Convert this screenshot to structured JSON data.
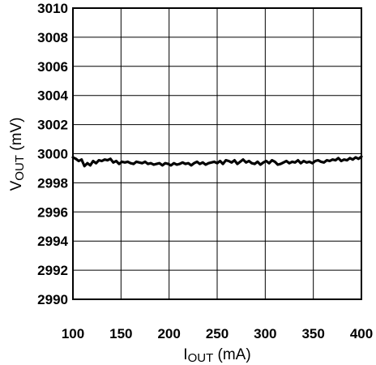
{
  "chart_data": {
    "type": "line",
    "xlabel": {
      "main": "I",
      "sub": "OUT",
      "unit": " (mA)"
    },
    "ylabel": {
      "main": "V",
      "sub": "OUT",
      "unit": " (mV)"
    },
    "xlim": [
      100,
      400
    ],
    "ylim": [
      2990,
      3010
    ],
    "x_ticks": [
      "100",
      "150",
      "200",
      "250",
      "300",
      "350",
      "400"
    ],
    "y_ticks": [
      "2990",
      "2992",
      "2994",
      "2996",
      "2998",
      "3000",
      "3002",
      "3004",
      "3006",
      "3008",
      "3010"
    ],
    "grid": true,
    "line_color": "#000000",
    "series": [
      {
        "x": [
          100,
          103,
          106,
          109,
          112,
          115,
          118,
          121,
          124,
          127,
          130,
          133,
          136,
          139,
          142,
          145,
          148,
          151,
          154,
          157,
          160,
          163,
          166,
          169,
          172,
          175,
          178,
          181,
          184,
          187,
          190,
          193,
          196,
          199,
          202,
          205,
          208,
          211,
          214,
          217,
          220,
          223,
          226,
          229,
          232,
          235,
          238,
          241,
          244,
          247,
          250,
          253,
          256,
          259,
          262,
          265,
          268,
          271,
          274,
          277,
          280,
          283,
          286,
          289,
          292,
          295,
          298,
          301,
          304,
          307,
          310,
          313,
          316,
          319,
          322,
          325,
          328,
          331,
          334,
          337,
          340,
          343,
          346,
          349,
          352,
          355,
          358,
          361,
          364,
          367,
          370,
          373,
          376,
          379,
          382,
          385,
          388,
          391,
          394,
          397,
          400
        ],
        "values": [
          2999.75,
          2999.65,
          2999.5,
          2999.6,
          2999.15,
          2999.35,
          2999.2,
          2999.5,
          2999.35,
          2999.55,
          2999.5,
          2999.6,
          2999.55,
          2999.65,
          2999.4,
          2999.5,
          2999.3,
          2999.45,
          2999.4,
          2999.45,
          2999.35,
          2999.3,
          2999.45,
          2999.4,
          2999.35,
          2999.45,
          2999.3,
          2999.35,
          2999.25,
          2999.3,
          2999.35,
          2999.2,
          2999.35,
          2999.3,
          2999.2,
          2999.35,
          2999.25,
          2999.3,
          2999.4,
          2999.3,
          2999.35,
          2999.2,
          2999.35,
          2999.45,
          2999.3,
          2999.4,
          2999.25,
          2999.35,
          2999.4,
          2999.45,
          2999.35,
          2999.5,
          2999.3,
          2999.55,
          2999.5,
          2999.4,
          2999.55,
          2999.3,
          2999.45,
          2999.6,
          2999.4,
          2999.5,
          2999.35,
          2999.3,
          2999.45,
          2999.25,
          2999.4,
          2999.5,
          2999.35,
          2999.55,
          2999.45,
          2999.25,
          2999.3,
          2999.4,
          2999.5,
          2999.35,
          2999.45,
          2999.4,
          2999.55,
          2999.35,
          2999.5,
          2999.4,
          2999.45,
          2999.35,
          2999.5,
          2999.55,
          2999.45,
          2999.4,
          2999.55,
          2999.5,
          2999.6,
          2999.55,
          2999.7,
          2999.5,
          2999.6,
          2999.55,
          2999.7,
          2999.6,
          2999.75,
          2999.65,
          2999.8
        ]
      }
    ]
  }
}
